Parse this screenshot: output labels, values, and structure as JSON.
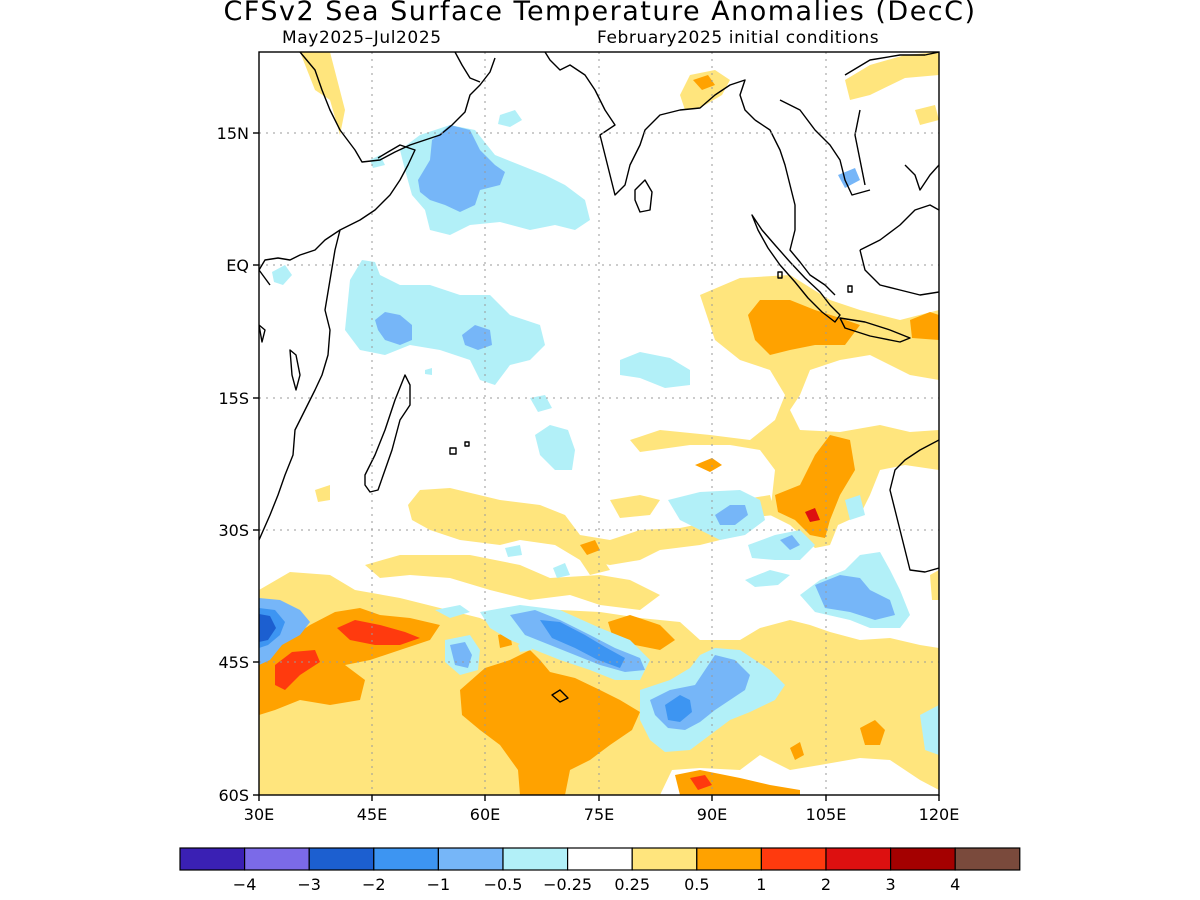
{
  "title": "CFSv2 Sea Surface Temperature Anomalies (DecC)",
  "subtitle_left": "May2025–Jul2025",
  "subtitle_right": "February2025 initial conditions",
  "map": {
    "x_ticks": [
      "30E",
      "45E",
      "60E",
      "75E",
      "90E",
      "105E",
      "120E"
    ],
    "y_ticks": [
      "15N",
      "EQ",
      "15S",
      "30S",
      "45S",
      "60S"
    ],
    "lon_range": [
      30,
      120
    ],
    "lat_range": [
      -60,
      24
    ]
  },
  "colorbar": {
    "colors": [
      "#3a20b4",
      "#7b6ae8",
      "#1c5fd0",
      "#3d95f2",
      "#76b6f8",
      "#b2f0f8",
      "#ffffff",
      "#ffe57d",
      "#ffa200",
      "#ff3a0e",
      "#dd1010",
      "#a40000",
      "#7a4a3c"
    ],
    "labels": [
      "−4",
      "−3",
      "−2",
      "−1",
      "−0.5",
      "−0.25",
      "0.25",
      "0.5",
      "1",
      "2",
      "3",
      "4"
    ]
  },
  "legend_colors": {
    "ocean": "#ffffff",
    "coast": "#000000",
    "grid": "#9a9a9a"
  }
}
